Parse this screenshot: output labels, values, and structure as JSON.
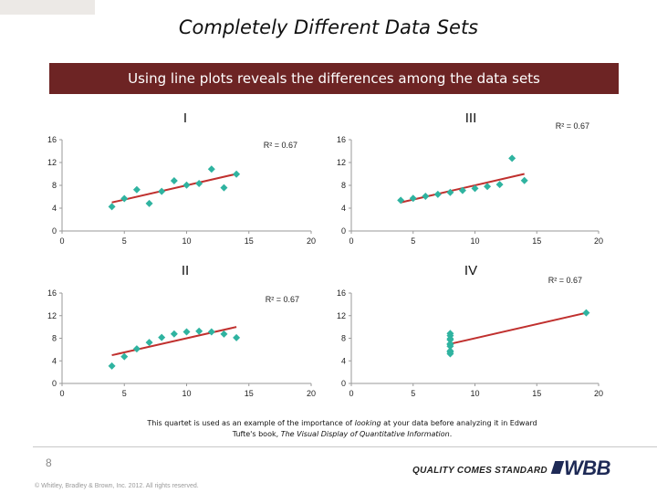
{
  "header": {
    "title": "Completely Different Data Sets",
    "banner": "Using line plots reveals the differences among the data sets"
  },
  "colors": {
    "banner_bg": "#6d2424",
    "marker": "#2fb3a0",
    "trendline": "#c0302e"
  },
  "chart_data": [
    {
      "type": "scatter",
      "title": "I",
      "annotation": "R² = 0.67",
      "xlim": [
        0,
        20
      ],
      "ylim": [
        0,
        16
      ],
      "xticks": [
        0,
        5,
        10,
        15,
        20
      ],
      "yticks": [
        0,
        4,
        8,
        12,
        16
      ],
      "x": [
        10,
        8,
        13,
        9,
        11,
        14,
        6,
        4,
        12,
        7,
        5
      ],
      "y": [
        8.04,
        6.95,
        7.58,
        8.81,
        8.33,
        9.96,
        7.24,
        4.26,
        10.84,
        4.82,
        5.68
      ],
      "trendline": {
        "slope": 0.5,
        "intercept": 3.0,
        "x_range": [
          4,
          14
        ]
      }
    },
    {
      "type": "scatter",
      "title": "III",
      "annotation": "R² = 0.67",
      "xlim": [
        0,
        20
      ],
      "ylim": [
        0,
        16
      ],
      "xticks": [
        0,
        5,
        10,
        15,
        20
      ],
      "yticks": [
        0,
        4,
        8,
        12,
        16
      ],
      "x": [
        10,
        8,
        13,
        9,
        11,
        14,
        6,
        4,
        12,
        7,
        5
      ],
      "y": [
        7.46,
        6.77,
        12.74,
        7.11,
        7.81,
        8.84,
        6.08,
        5.39,
        8.15,
        6.42,
        5.73
      ],
      "trendline": {
        "slope": 0.5,
        "intercept": 3.0,
        "x_range": [
          4,
          14
        ]
      }
    },
    {
      "type": "scatter",
      "title": "II",
      "annotation": "R² = 0.67",
      "xlim": [
        0,
        20
      ],
      "ylim": [
        0,
        16
      ],
      "xticks": [
        0,
        5,
        10,
        15,
        20
      ],
      "yticks": [
        0,
        4,
        8,
        12,
        16
      ],
      "x": [
        10,
        8,
        13,
        9,
        11,
        14,
        6,
        4,
        12,
        7,
        5
      ],
      "y": [
        9.14,
        8.14,
        8.74,
        8.77,
        9.26,
        8.1,
        6.13,
        3.1,
        9.13,
        7.26,
        4.74
      ],
      "trendline": {
        "slope": 0.5,
        "intercept": 3.0,
        "x_range": [
          4,
          14
        ]
      }
    },
    {
      "type": "scatter",
      "title": "IV",
      "annotation": "R² = 0.67",
      "xlim": [
        0,
        20
      ],
      "ylim": [
        0,
        16
      ],
      "xticks": [
        0,
        5,
        10,
        15,
        20
      ],
      "yticks": [
        0,
        4,
        8,
        12,
        16
      ],
      "x": [
        8,
        8,
        8,
        8,
        8,
        8,
        8,
        19,
        8,
        8,
        8
      ],
      "y": [
        6.58,
        5.76,
        7.71,
        8.84,
        8.47,
        7.04,
        5.25,
        12.5,
        5.56,
        7.91,
        6.89
      ],
      "trendline": {
        "slope": 0.5,
        "intercept": 3.0,
        "x_range": [
          8,
          19
        ]
      }
    }
  ],
  "caption": {
    "line1_before": "This quartet is used as an example of the importance of ",
    "line1_em": "looking",
    "line1_after": " at your data before analyzing it in Edward",
    "line2_before": "Tufte's book, ",
    "line2_em": "The Visual Display of Quantitative Information",
    "line2_after": "."
  },
  "footer": {
    "page_number": "8",
    "copyright": "© Whitley, Bradley & Brown, Inc. 2012.  All rights reserved.",
    "tagline": "QUALITY COMES STANDARD",
    "logo": "WBB"
  }
}
